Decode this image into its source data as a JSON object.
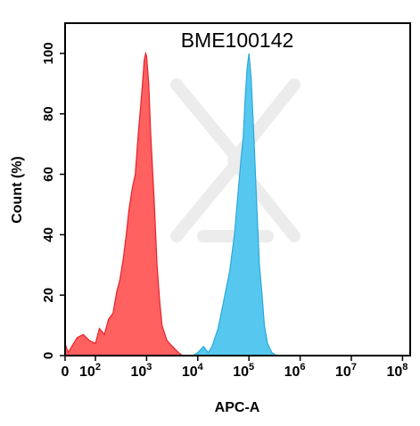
{
  "chart_data": {
    "type": "area",
    "title": "BME100142",
    "xlabel": "APC-A",
    "ylabel": "Count  (%)",
    "x_scale": "biexponential",
    "xlim": [
      0,
      100000000
    ],
    "ylim": [
      0,
      110
    ],
    "grid": false,
    "legend": "none",
    "x_ticks": [
      {
        "base": "0",
        "exp": ""
      },
      {
        "base": "10",
        "exp": "2"
      },
      {
        "base": "10",
        "exp": "3"
      },
      {
        "base": "10",
        "exp": "4"
      },
      {
        "base": "10",
        "exp": "5"
      },
      {
        "base": "10",
        "exp": "6"
      },
      {
        "base": "10",
        "exp": "7"
      },
      {
        "base": "10",
        "exp": "8"
      }
    ],
    "y_ticks": [
      "0",
      "20",
      "40",
      "60",
      "80",
      "100"
    ],
    "y_tick_values": [
      0,
      20,
      40,
      60,
      80,
      100
    ],
    "series": [
      {
        "color": "#ff6060",
        "stroke": "#e8222a",
        "points": [
          [
            0,
            4
          ],
          [
            10,
            1
          ],
          [
            22,
            3
          ],
          [
            40,
            6
          ],
          [
            60,
            7
          ],
          [
            80,
            5
          ],
          [
            100,
            4
          ],
          [
            120,
            9
          ],
          [
            150,
            7
          ],
          [
            180,
            12
          ],
          [
            220,
            14
          ],
          [
            260,
            21
          ],
          [
            300,
            25
          ],
          [
            350,
            32
          ],
          [
            400,
            40
          ],
          [
            450,
            48
          ],
          [
            520,
            55
          ],
          [
            600,
            60
          ],
          [
            650,
            68
          ],
          [
            700,
            75
          ],
          [
            760,
            82
          ],
          [
            830,
            90
          ],
          [
            900,
            98
          ],
          [
            960,
            100
          ],
          [
            1000,
            99
          ],
          [
            1100,
            90
          ],
          [
            1200,
            74
          ],
          [
            1400,
            52
          ],
          [
            1600,
            30
          ],
          [
            1800,
            18
          ],
          [
            2000,
            10
          ],
          [
            2500,
            5
          ],
          [
            3200,
            3
          ],
          [
            4200,
            1
          ],
          [
            5000,
            0
          ]
        ]
      },
      {
        "color": "#56c8ef",
        "stroke": "#2ba8dc",
        "points": [
          [
            8000,
            0
          ],
          [
            10000,
            1
          ],
          [
            13000,
            3
          ],
          [
            16000,
            1
          ],
          [
            19000,
            3
          ],
          [
            25000,
            9
          ],
          [
            32000,
            18
          ],
          [
            42000,
            28
          ],
          [
            52000,
            40
          ],
          [
            62000,
            55
          ],
          [
            70000,
            65
          ],
          [
            77000,
            72
          ],
          [
            84000,
            85
          ],
          [
            92000,
            95
          ],
          [
            100000,
            100
          ],
          [
            110000,
            92
          ],
          [
            125000,
            72
          ],
          [
            140000,
            52
          ],
          [
            160000,
            30
          ],
          [
            180000,
            20
          ],
          [
            200000,
            10
          ],
          [
            230000,
            4
          ],
          [
            280000,
            1
          ],
          [
            350000,
            0
          ]
        ]
      }
    ]
  }
}
